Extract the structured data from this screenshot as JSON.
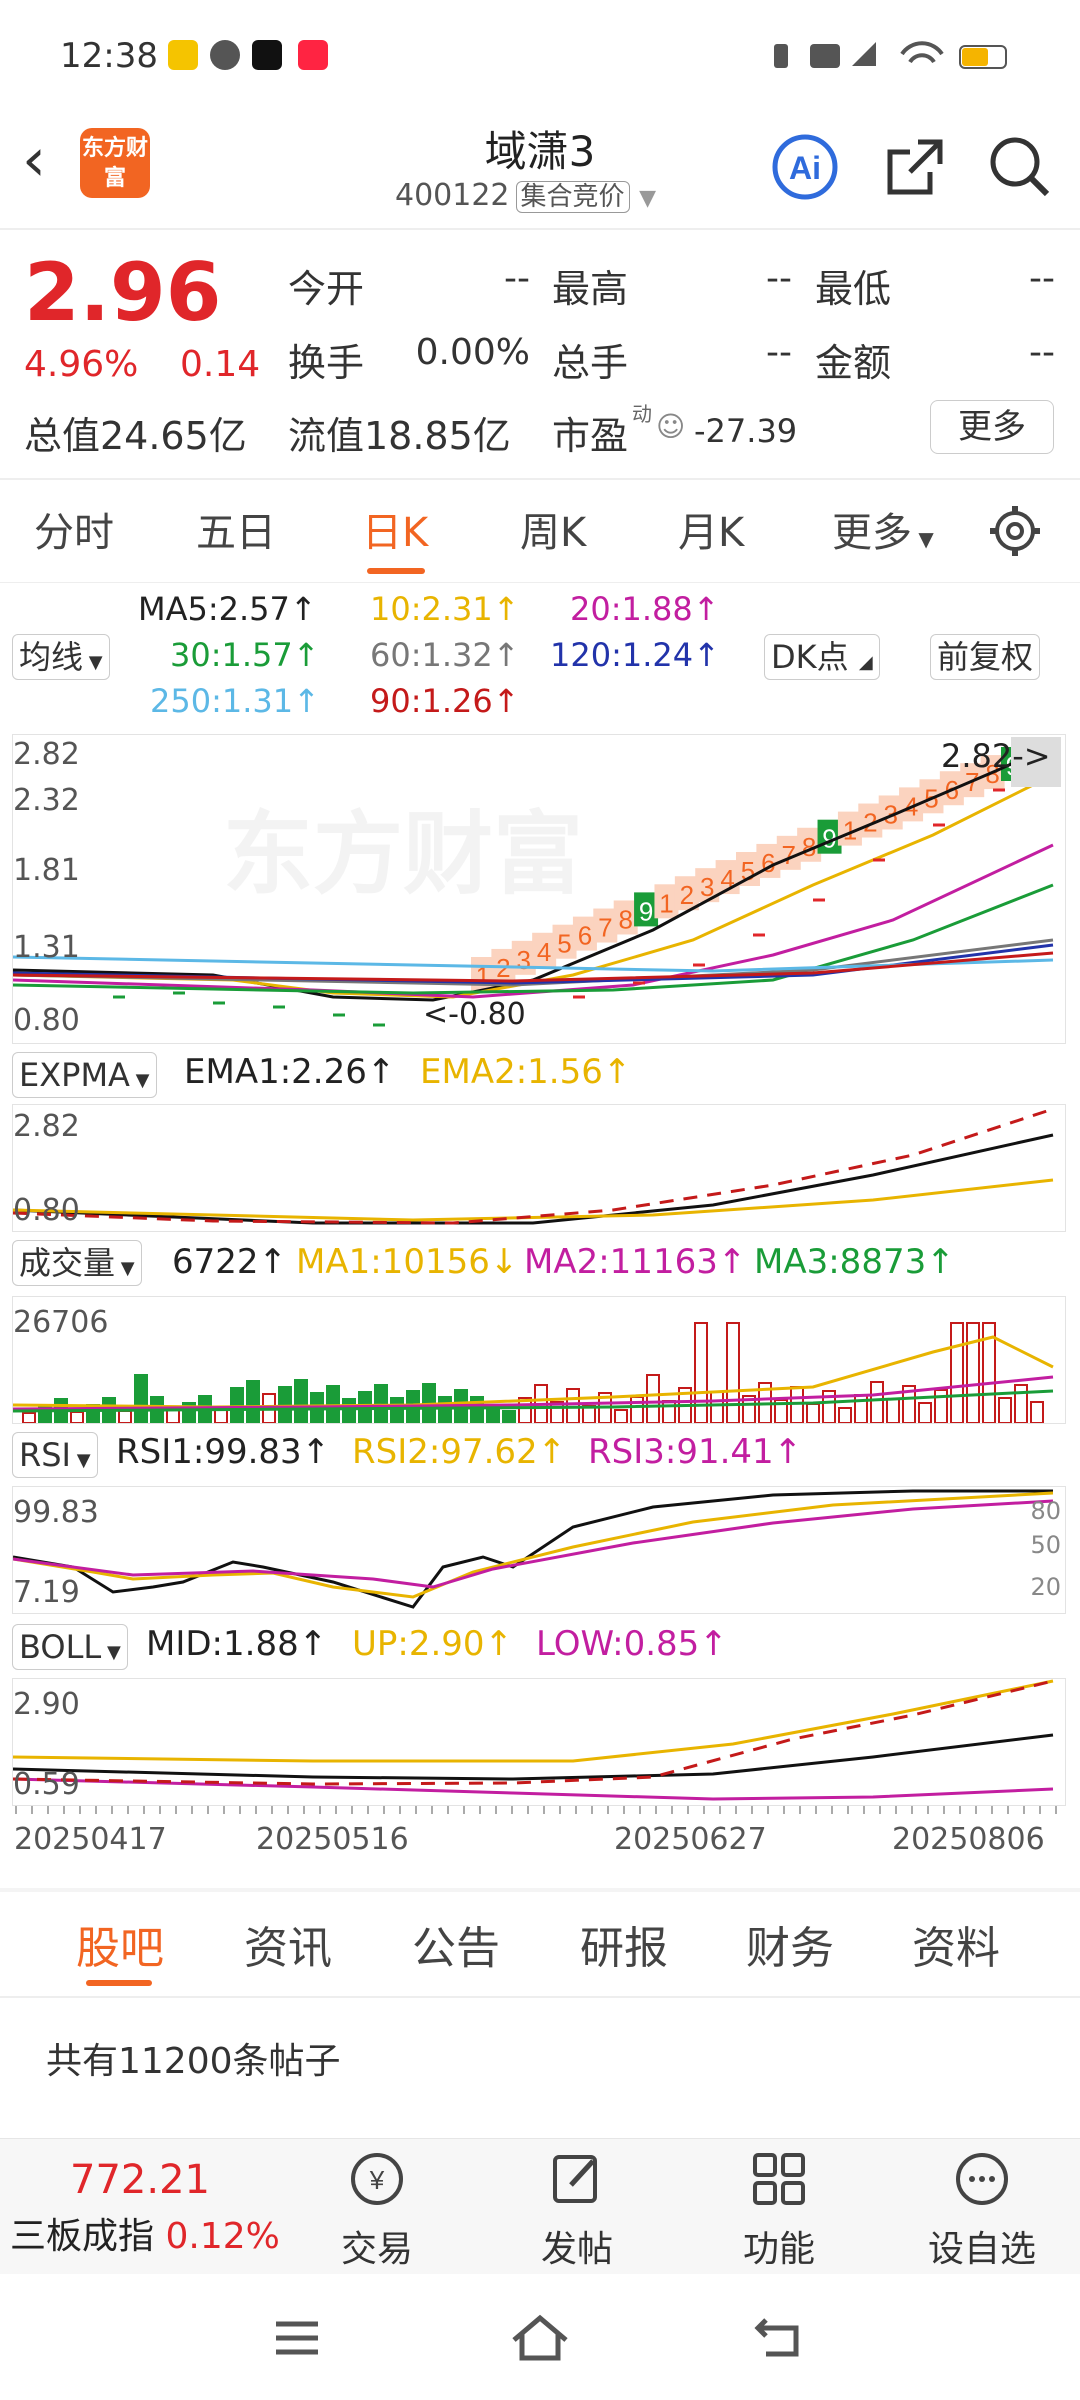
{
  "status_bar": {
    "time": "12:38"
  },
  "header": {
    "logo_text": "东方财富",
    "title": "域潇3",
    "code": "400122",
    "code_tag": "集合竞价"
  },
  "quote": {
    "price": "2.96",
    "pct": "4.96%",
    "change": "0.14",
    "open_label": "今开",
    "open_val": "--",
    "high_label": "最高",
    "high_val": "--",
    "low_label": "最低",
    "low_val": "--",
    "turnover_label": "换手",
    "turnover_val": "0.00%",
    "volume_label": "总手",
    "volume_val": "--",
    "amount_label": "金额",
    "amount_val": "--",
    "mktcap": "总值24.65亿",
    "float_cap": "流值18.85亿",
    "pe_label": "市盈",
    "pe_sup": "动",
    "pe_val": "-27.39",
    "more": "更多"
  },
  "kline_tabs": [
    "分时",
    "五日",
    "日K",
    "周K",
    "月K",
    "更多"
  ],
  "ma": {
    "selector": "均线",
    "ma5": "MA5:2.57↑",
    "ma10": "10:2.31↑",
    "ma20": "20:1.88↑",
    "ma30": "30:1.57↑",
    "ma60": "60:1.32↑",
    "ma120": "120:1.24↑",
    "ma250": "250:1.31↑",
    "ma90": "90:1.26↑",
    "dk": "DK点",
    "fq": "前复权"
  },
  "main_chart": {
    "y_labels": [
      "2.82",
      "2.32",
      "1.81",
      "1.31",
      "0.80"
    ],
    "max_label": "2.82->",
    "min_label": "<-0.80",
    "watermark": "东方财富",
    "seq_labels": [
      "1",
      "2",
      "3",
      "4",
      "5",
      "6",
      "7",
      "8",
      "9",
      "1",
      "2",
      "3",
      "4",
      "5",
      "6",
      "7",
      "8",
      "9",
      "1",
      "2",
      "3",
      "4",
      "5",
      "6",
      "7",
      "8",
      "9"
    ]
  },
  "expma": {
    "selector": "EXPMA",
    "ema1": "EMA1:2.26↑",
    "ema2": "EMA2:1.56↑",
    "y_top": "2.82",
    "y_bottom": "0.80"
  },
  "volume": {
    "selector": "成交量",
    "vol": "6722↑",
    "ma1": "MA1:10156↓",
    "ma2": "MA2:11163↑",
    "ma3": "MA3:8873↑",
    "y_top": "26706"
  },
  "rsi": {
    "selector": "RSI",
    "rsi1": "RSI1:99.83↑",
    "rsi2": "RSI2:97.62↑",
    "rsi3": "RSI3:91.41↑",
    "y_top": "99.83",
    "y_bottom": "7.19",
    "levels": [
      "80",
      "50",
      "20"
    ]
  },
  "boll": {
    "selector": "BOLL",
    "mid": "MID:1.88↑",
    "up": "UP:2.90↑",
    "low": "LOW:0.85↑",
    "y_top": "2.90",
    "y_bottom": "0.59"
  },
  "dates": [
    "20250417",
    "20250516",
    "20250627",
    "20250806"
  ],
  "info_tabs": [
    "股吧",
    "资讯",
    "公告",
    "研报",
    "财务",
    "资料"
  ],
  "posts_count": "共有11200条帖子",
  "footer": {
    "index_value": "772.21",
    "index_name": "三板成指",
    "index_pct": "0.12%",
    "trade": "交易",
    "post": "发帖",
    "func": "功能",
    "watch": "设自选"
  },
  "colors": {
    "accent": "#f26522",
    "up": "#e0262a",
    "down": "#1a9c38"
  }
}
